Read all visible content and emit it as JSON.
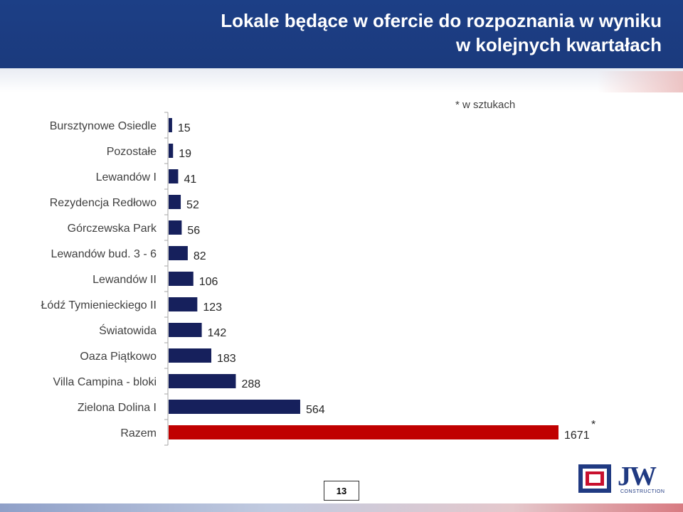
{
  "header": {
    "title_line1": "Lokale będące w ofercie do rozpoznania w wyniku",
    "title_line2": "w kolejnych kwartałach"
  },
  "note": "* w sztukach",
  "page_number": "13",
  "logo": {
    "text": "JW",
    "sub": "CONSTRUCTION"
  },
  "colors": {
    "header": "#1c3f86",
    "bar": "#16205c",
    "highlight": "#c00000"
  },
  "chart_data": {
    "type": "bar",
    "orientation": "horizontal",
    "title": "",
    "xlabel": "",
    "ylabel": "",
    "categories": [
      "Bursztynowe Osiedle",
      "Pozostałe",
      "Lewandów I",
      "Rezydencja Redłowo",
      "Górczewska Park",
      "Lewandów bud. 3 - 6",
      "Lewandów II",
      "Łódź Tymienieckiego II",
      "Światowida",
      "Oaza Piątkowo",
      "Villa Campina - bloki",
      "Zielona Dolina I",
      "Razem"
    ],
    "values": [
      15,
      19,
      41,
      52,
      56,
      82,
      106,
      123,
      142,
      183,
      288,
      564,
      1671
    ],
    "highlight_category": "Razem",
    "highlight_marker": "*",
    "xlim": [
      0,
      1671
    ],
    "grid": false,
    "legend": "none"
  }
}
